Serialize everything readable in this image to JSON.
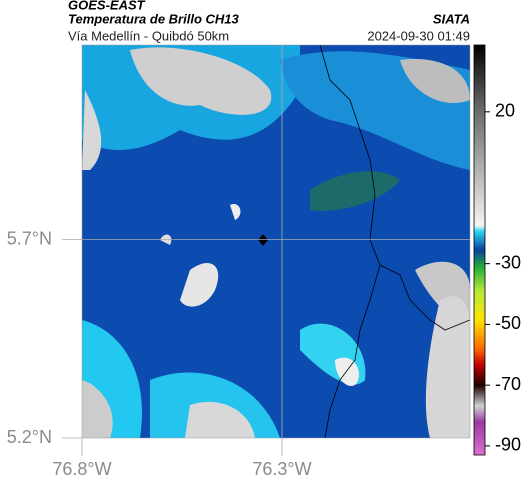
{
  "header": {
    "title": "GOES-EAST",
    "subtitle": "Temperatura de Brillo CH13",
    "source": "SIATA",
    "region": "Vía Medellín - Quibdó 50km",
    "datetime": "2024-09-30 01:49"
  },
  "map": {
    "latlim": [
      5.2,
      6.19
    ],
    "lonlim": [
      -76.8,
      -75.83
    ],
    "lat_ticks": [
      {
        "value": 5.7,
        "label": "5.7°N"
      },
      {
        "value": 5.2,
        "label": "5.2°N"
      }
    ],
    "lon_ticks": [
      {
        "value": -76.8,
        "label": "76.8°W"
      },
      {
        "value": -76.3,
        "label": "76.3°W"
      }
    ],
    "grid": true
  },
  "colorbar": {
    "clim": [
      -93,
      42
    ],
    "ticks": [
      20,
      -30,
      -50,
      -70,
      -90
    ]
  }
}
